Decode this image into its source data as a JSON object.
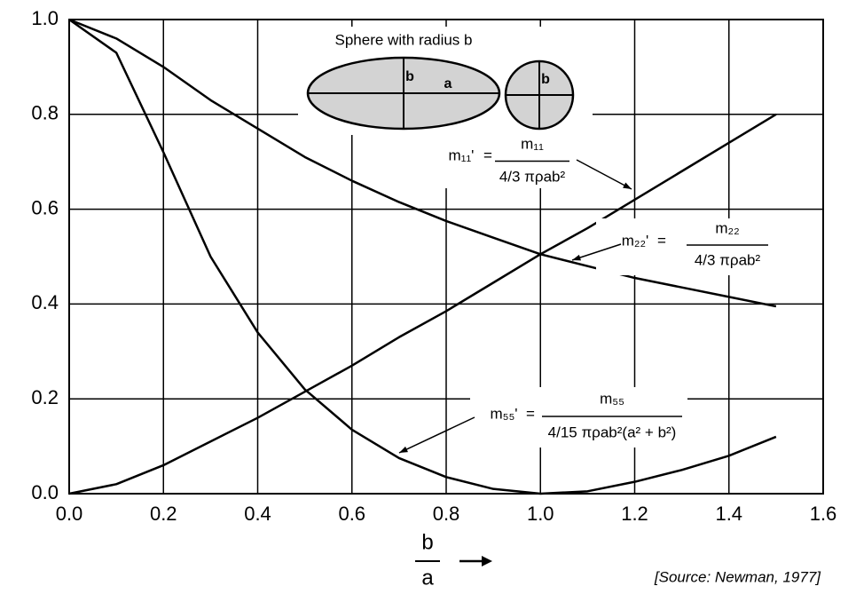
{
  "chart_data": {
    "type": "line",
    "title": "Sphere with radius b",
    "source": "[Source: Newman, 1977]",
    "x_label_numerator": "b",
    "x_label_denominator": "a",
    "diagram_labels": [
      "b",
      "a",
      "b"
    ],
    "x": [
      0,
      0.1,
      0.2,
      0.3,
      0.4,
      0.5,
      0.6,
      0.7,
      0.8,
      0.9,
      1.0,
      1.1,
      1.2,
      1.3,
      1.4,
      1.5
    ],
    "series": [
      {
        "name": "m₁₁'",
        "numerator": "m₁₁",
        "denominator": "4/3 πρab²",
        "color": "#000000",
        "values": [
          0,
          0.02,
          0.06,
          0.11,
          0.16,
          0.215,
          0.27,
          0.33,
          0.385,
          0.445,
          0.505,
          0.56,
          0.62,
          0.68,
          0.74,
          0.8
        ]
      },
      {
        "name": "m₂₂'",
        "numerator": "m₂₂",
        "denominator": "4/3 πρab²",
        "color": "#000000",
        "values": [
          1.0,
          0.96,
          0.9,
          0.83,
          0.77,
          0.71,
          0.66,
          0.615,
          0.575,
          0.54,
          0.505,
          0.48,
          0.455,
          0.435,
          0.415,
          0.395
        ]
      },
      {
        "name": "m₅₅'",
        "numerator": "m₅₅",
        "denominator": "4/15 πρab²(a² + b²)",
        "color": "#000000",
        "values": [
          1.0,
          0.93,
          0.72,
          0.5,
          0.34,
          0.22,
          0.135,
          0.075,
          0.035,
          0.01,
          0.0,
          0.005,
          0.025,
          0.05,
          0.08,
          0.12
        ]
      }
    ],
    "xlim": [
      0,
      1.6
    ],
    "ylim": [
      0,
      1.0
    ],
    "xticks": [
      {
        "value": 0,
        "label": "0.0"
      },
      0.2,
      0.4,
      0.6,
      0.8,
      {
        "value": 1,
        "label": "1.0"
      },
      1.2,
      1.4,
      1.6
    ],
    "yticks": [
      {
        "value": 0,
        "label": "0.0"
      },
      0.2,
      0.4,
      0.6,
      0.8,
      {
        "value": 1,
        "label": "1.0"
      }
    ],
    "grid": true
  }
}
